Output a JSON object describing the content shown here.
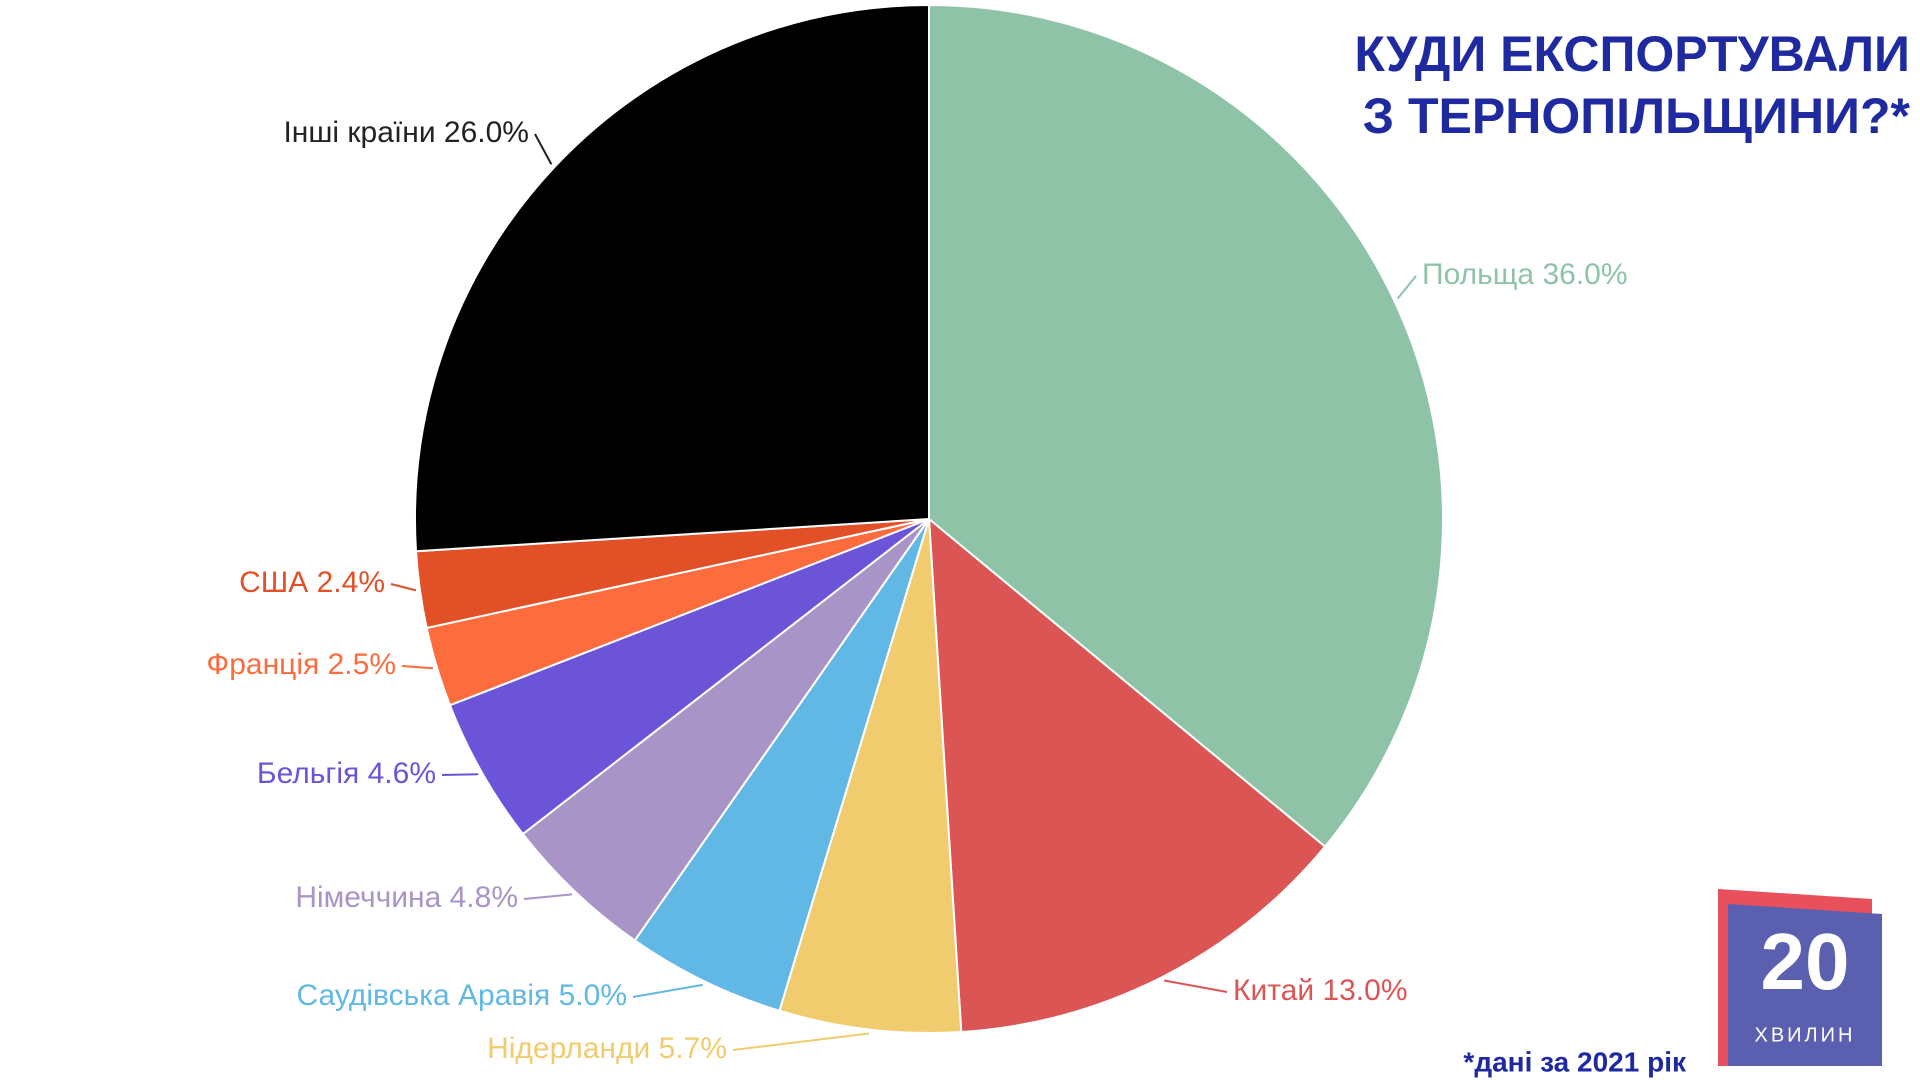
{
  "chart_data": {
    "type": "pie",
    "title": [
      "КУДИ ЕКСПОРТУВАЛИ",
      "З ТЕРНОПІЛЬЩИНИ?*"
    ],
    "categories": [
      "Польща",
      "Китай",
      "Нідерланди",
      "Саудівська Аравія",
      "Німеччина",
      "Бельгія",
      "Франція",
      "США",
      "Інші країни"
    ],
    "values": [
      36.0,
      13.0,
      5.7,
      5.0,
      4.8,
      4.6,
      2.5,
      2.4,
      26.0
    ],
    "value_labels": [
      "36.0%",
      "13.0%",
      "5.7%",
      "5.0%",
      "4.8%",
      "4.6%",
      "2.5%",
      "2.4%",
      "26.0%"
    ],
    "colors": [
      "#8fc3a8",
      "#dc5555",
      "#f0cc6e",
      "#62b8e4",
      "#a994c7",
      "#6c54d9",
      "#fd6c3d",
      "#e25027",
      "#000000"
    ],
    "note": "*дані за 2021 рік"
  },
  "logo": {
    "number": "20",
    "text": "ХВИЛИН"
  }
}
